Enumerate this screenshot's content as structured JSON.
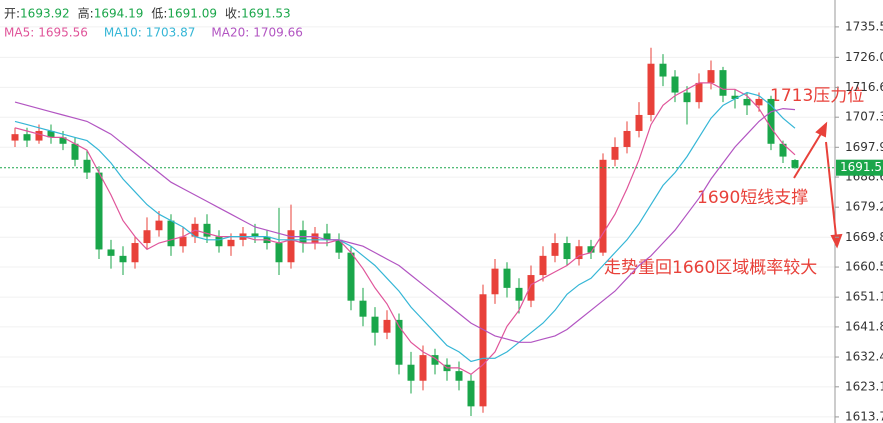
{
  "chart_data": {
    "type": "candlestick",
    "ohlc_header": [
      {
        "label": "开:",
        "value": 1693.92
      },
      {
        "label": "高:",
        "value": 1694.19
      },
      {
        "label": "低:",
        "value": 1691.09
      },
      {
        "label": "收:",
        "value": 1691.53
      }
    ],
    "up_color": "#e8413a",
    "down_color": "#1aa64a",
    "ylim": [
      1611.8,
      1743.9
    ],
    "yticks": [
      1735.5,
      {
        "value": 1726,
        "label": "1726.0"
      },
      1716.6,
      1707.3,
      1697.9,
      1688.6,
      1679.2,
      1669.8,
      1660.5,
      1651.1,
      1641.8,
      1632.4,
      1623.1,
      1613.7
    ],
    "grid": true,
    "candles": {
      "open": [
        1700,
        1702,
        1700,
        1703,
        1701,
        1699,
        1694,
        1690,
        1666,
        1664,
        1662,
        1668,
        1672,
        1675,
        1667,
        1670,
        1674,
        1670,
        1667,
        1669,
        1671,
        1670,
        1668,
        1662,
        1672,
        1668,
        1671,
        1669,
        1665,
        1650,
        1645,
        1640,
        1644,
        1630,
        1625,
        1633,
        1630,
        1628,
        1625,
        1617,
        1652,
        1660,
        1654,
        1650,
        1658,
        1664,
        1668,
        1663,
        1667,
        1665,
        1694,
        1698,
        1703,
        1708,
        1724,
        1720,
        1715,
        1712,
        1718,
        1722,
        1714,
        1713,
        1711,
        1713,
        1699,
        1693.92
      ],
      "high": [
        1704,
        1704,
        1705,
        1705,
        1703,
        1701,
        1697,
        1692,
        1669,
        1667,
        1670,
        1676,
        1678,
        1677,
        1673,
        1676,
        1677,
        1672,
        1671,
        1673,
        1674,
        1672,
        1679,
        1680,
        1675,
        1673,
        1674,
        1671,
        1667,
        1654,
        1648,
        1647,
        1646,
        1634,
        1636,
        1635,
        1632,
        1631,
        1627,
        1655,
        1663,
        1662,
        1657,
        1661,
        1667,
        1671,
        1670,
        1669,
        1669,
        1696,
        1701,
        1706,
        1712,
        1729,
        1727,
        1722,
        1717,
        1721,
        1725,
        1723,
        1716,
        1715,
        1715,
        1714,
        1700,
        1694.19
      ],
      "low": [
        1698,
        1698,
        1699,
        1699,
        1697,
        1692,
        1688,
        1663,
        1660,
        1658,
        1660,
        1666,
        1670,
        1664,
        1665,
        1668,
        1668,
        1665,
        1664,
        1667,
        1668,
        1666,
        1658,
        1660,
        1665,
        1666,
        1667,
        1663,
        1647,
        1642,
        1636,
        1638,
        1627,
        1621,
        1622,
        1627,
        1625,
        1622,
        1614,
        1615,
        1649,
        1651,
        1646,
        1648,
        1656,
        1662,
        1661,
        1661,
        1663,
        1664,
        1692,
        1696,
        1701,
        1706,
        1717,
        1712,
        1705,
        1710,
        1716,
        1712,
        1710,
        1708,
        1709,
        1697,
        1693,
        1691.09
      ],
      "close": [
        1702,
        1700,
        1703,
        1701,
        1699,
        1694,
        1690,
        1666,
        1664,
        1662,
        1668,
        1672,
        1675,
        1667,
        1670,
        1674,
        1670,
        1667,
        1669,
        1671,
        1670,
        1668,
        1662,
        1672,
        1668,
        1671,
        1669,
        1665,
        1650,
        1645,
        1640,
        1644,
        1630,
        1625,
        1633,
        1630,
        1628,
        1625,
        1617,
        1652,
        1660,
        1654,
        1650,
        1658,
        1664,
        1668,
        1663,
        1667,
        1665,
        1694,
        1698,
        1703,
        1708,
        1724,
        1720,
        1715,
        1712,
        1718,
        1722,
        1714,
        1713,
        1711,
        1713,
        1699,
        1695,
        1691.53
      ]
    },
    "series": [
      {
        "name": "MA5:",
        "color": "#e0559a",
        "values": [
          1704,
          1703,
          1702,
          1701,
          1701,
          1699,
          1697,
          1690,
          1683,
          1675,
          1670,
          1666,
          1668,
          1669,
          1670,
          1672,
          1671,
          1670,
          1670,
          1670,
          1669,
          1669,
          1668,
          1669,
          1668,
          1668,
          1668,
          1669,
          1665,
          1660,
          1654,
          1649,
          1642,
          1637,
          1634,
          1632,
          1629,
          1629,
          1627,
          1630,
          1634,
          1642,
          1647,
          1655,
          1657,
          1659,
          1661,
          1664,
          1665,
          1671,
          1677,
          1685,
          1694,
          1705,
          1711,
          1714,
          1716,
          1718,
          1718,
          1716,
          1716,
          1714,
          1710,
          1704,
          1699,
          1695.56
        ]
      },
      {
        "name": "MA10:",
        "color": "#35b6d6",
        "values": [
          1706,
          1705,
          1704,
          1703,
          1702,
          1701,
          1700,
          1697,
          1693,
          1688,
          1684,
          1680,
          1677,
          1675,
          1673,
          1670,
          1669,
          1669,
          1670,
          1670,
          1670,
          1670,
          1669,
          1669,
          1669,
          1669,
          1669,
          1669,
          1667,
          1664,
          1661,
          1657,
          1653,
          1648,
          1644,
          1640,
          1636,
          1634,
          1631,
          1632,
          1632,
          1634,
          1637,
          1640,
          1643,
          1647,
          1652,
          1655,
          1657,
          1661,
          1665,
          1669,
          1674,
          1680,
          1686,
          1690,
          1695,
          1701,
          1707,
          1711,
          1713,
          1715,
          1714,
          1711,
          1707,
          1703.87
        ]
      },
      {
        "name": "MA20:",
        "color": "#b255c2",
        "values": [
          1712,
          1711,
          1710,
          1709,
          1708,
          1707,
          1706,
          1704,
          1702,
          1699,
          1696,
          1693,
          1690,
          1687,
          1685,
          1683,
          1681,
          1679,
          1677,
          1675,
          1673,
          1672,
          1671,
          1670,
          1670,
          1670,
          1669,
          1669,
          1668,
          1667,
          1665,
          1663,
          1661,
          1658,
          1655,
          1652,
          1649,
          1646,
          1643,
          1641,
          1639,
          1638,
          1637,
          1637,
          1638,
          1639,
          1641,
          1644,
          1647,
          1650,
          1653,
          1657,
          1661,
          1664,
          1668,
          1672,
          1677,
          1682,
          1688,
          1693,
          1698,
          1702,
          1706,
          1709,
          1710,
          1709.66
        ]
      }
    ],
    "annotations": [
      "1713压力位",
      "1690短线支撑",
      "走势重回1660区域概率较大"
    ]
  }
}
